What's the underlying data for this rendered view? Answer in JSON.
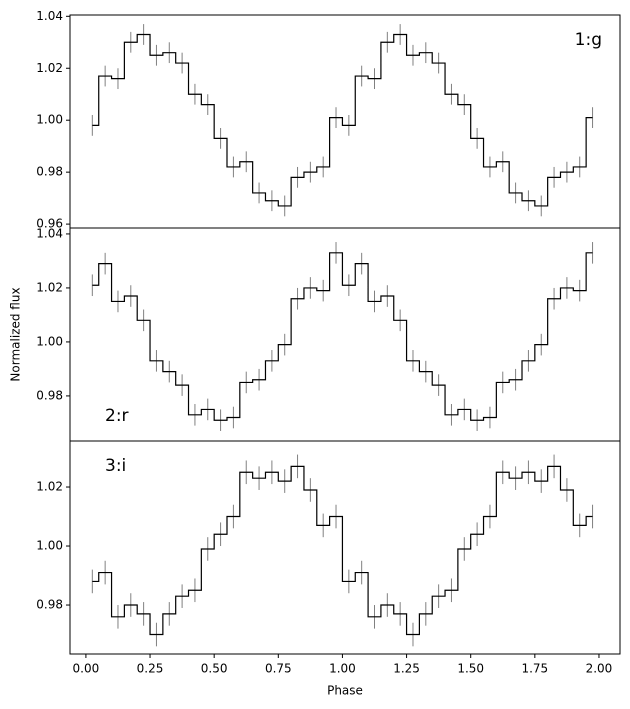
{
  "chart_data": [
    {
      "type": "line",
      "label": "1:g",
      "label_position": "upper right",
      "step": "mid",
      "x": [
        0.025,
        0.075,
        0.125,
        0.175,
        0.225,
        0.275,
        0.325,
        0.375,
        0.425,
        0.475,
        0.525,
        0.575,
        0.625,
        0.675,
        0.725,
        0.775,
        0.825,
        0.875,
        0.925,
        0.975,
        1.025,
        1.075,
        1.125,
        1.175,
        1.225,
        1.275,
        1.325,
        1.375,
        1.425,
        1.475,
        1.525,
        1.575,
        1.625,
        1.675,
        1.725,
        1.775,
        1.825,
        1.875,
        1.925,
        1.975
      ],
      "series": [
        {
          "color": "#000000",
          "error_color": "#808080",
          "yerr": 0.004,
          "values": [
            0.998,
            1.017,
            1.016,
            1.03,
            1.033,
            1.025,
            1.026,
            1.022,
            1.01,
            1.006,
            0.993,
            0.982,
            0.984,
            0.972,
            0.969,
            0.967,
            0.978,
            0.98,
            0.982,
            1.001,
            0.998,
            1.017,
            1.016,
            1.03,
            1.033,
            1.025,
            1.026,
            1.022,
            1.01,
            1.006,
            0.993,
            0.982,
            0.984,
            0.972,
            0.969,
            0.967,
            0.978,
            0.98,
            0.982,
            1.001
          ]
        }
      ],
      "xlim": [
        -0.062,
        2.082
      ],
      "ylim": [
        0.9585,
        1.0405
      ],
      "yticks": [
        0.96,
        0.98,
        {
          "value": 1,
          "label": "1.00"
        },
        1.02,
        1.04
      ]
    },
    {
      "type": "line",
      "label": "2:r",
      "label_position": "lower left",
      "step": "mid",
      "ylabel": "Normalized flux",
      "x": [
        0.025,
        0.075,
        0.125,
        0.175,
        0.225,
        0.275,
        0.325,
        0.375,
        0.425,
        0.475,
        0.525,
        0.575,
        0.625,
        0.675,
        0.725,
        0.775,
        0.825,
        0.875,
        0.925,
        0.975,
        1.025,
        1.075,
        1.125,
        1.175,
        1.225,
        1.275,
        1.325,
        1.375,
        1.425,
        1.475,
        1.525,
        1.575,
        1.625,
        1.675,
        1.725,
        1.775,
        1.825,
        1.875,
        1.925,
        1.975
      ],
      "series": [
        {
          "color": "#000000",
          "error_color": "#808080",
          "yerr": 0.004,
          "values": [
            1.021,
            1.029,
            1.015,
            1.017,
            1.008,
            0.993,
            0.989,
            0.984,
            0.973,
            0.975,
            0.971,
            0.972,
            0.985,
            0.986,
            0.993,
            0.999,
            1.016,
            1.02,
            1.019,
            1.033,
            1.021,
            1.029,
            1.015,
            1.017,
            1.008,
            0.993,
            0.989,
            0.984,
            0.973,
            0.975,
            0.971,
            0.972,
            0.985,
            0.986,
            0.993,
            0.999,
            1.016,
            1.02,
            1.019,
            1.033
          ]
        }
      ],
      "xlim": [
        -0.062,
        2.082
      ],
      "ylim": [
        0.9633,
        1.0422
      ],
      "yticks": [
        0.98,
        {
          "value": 1,
          "label": "1.00"
        },
        1.02,
        1.04
      ]
    },
    {
      "type": "line",
      "label": "3:i",
      "label_position": "upper left",
      "step": "mid",
      "xlabel": "Phase",
      "x": [
        0.025,
        0.075,
        0.125,
        0.175,
        0.225,
        0.275,
        0.325,
        0.375,
        0.425,
        0.475,
        0.525,
        0.575,
        0.625,
        0.675,
        0.725,
        0.775,
        0.825,
        0.875,
        0.925,
        0.975,
        1.025,
        1.075,
        1.125,
        1.175,
        1.225,
        1.275,
        1.325,
        1.375,
        1.425,
        1.475,
        1.525,
        1.575,
        1.625,
        1.675,
        1.725,
        1.775,
        1.825,
        1.875,
        1.925,
        1.975
      ],
      "series": [
        {
          "color": "#000000",
          "error_color": "#808080",
          "yerr": 0.004,
          "values": [
            0.988,
            0.991,
            0.976,
            0.98,
            0.977,
            0.97,
            0.977,
            0.983,
            0.985,
            0.999,
            1.004,
            1.01,
            1.025,
            1.023,
            1.025,
            1.022,
            1.027,
            1.019,
            1.007,
            1.01,
            0.988,
            0.991,
            0.976,
            0.98,
            0.977,
            0.97,
            0.977,
            0.983,
            0.985,
            0.999,
            1.004,
            1.01,
            1.025,
            1.023,
            1.025,
            1.022,
            1.027,
            1.019,
            1.007,
            1.01
          ]
        }
      ],
      "xlim": [
        -0.062,
        2.082
      ],
      "ylim": [
        0.9634,
        1.0356
      ],
      "yticks": [
        0.98,
        {
          "value": 1,
          "label": "1.00"
        },
        1.02
      ],
      "xticks": [
        {
          "value": 0,
          "label": "0.00"
        },
        {
          "value": 0.25,
          "label": "0.25"
        },
        {
          "value": 0.5,
          "label": "0.50"
        },
        {
          "value": 0.75,
          "label": "0.75"
        },
        {
          "value": 1,
          "label": "1.00"
        },
        {
          "value": 1.25,
          "label": "1.25"
        },
        {
          "value": 1.5,
          "label": "1.50"
        },
        {
          "value": 1.75,
          "label": "1.75"
        },
        {
          "value": 2,
          "label": "2.00"
        }
      ]
    }
  ]
}
